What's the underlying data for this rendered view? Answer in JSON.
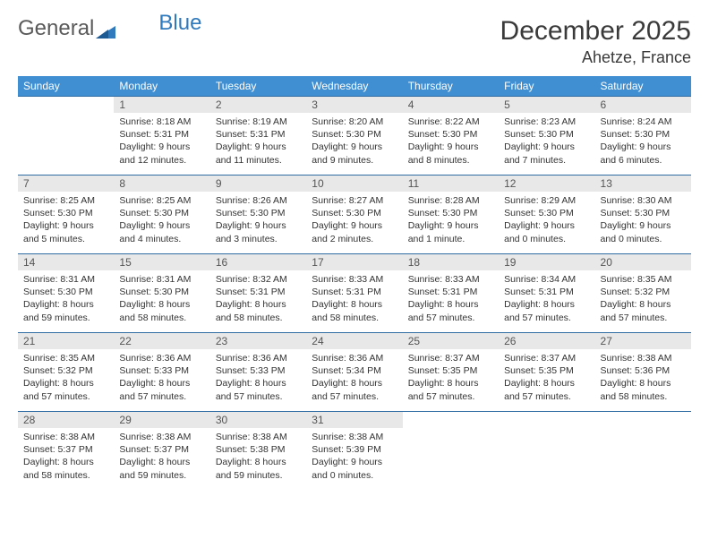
{
  "brand": {
    "part1": "General",
    "part2": "Blue"
  },
  "title": "December 2025",
  "location": "Ahetze, France",
  "colors": {
    "header_bg": "#3f8fd2",
    "header_text": "#ffffff",
    "daynum_bg": "#e8e8e8",
    "daynum_text": "#555555",
    "row_border": "#2e6ca3",
    "body_text": "#333333",
    "brand_gray": "#5a5a5a",
    "brand_blue": "#2f79bd"
  },
  "weekdays": [
    "Sunday",
    "Monday",
    "Tuesday",
    "Wednesday",
    "Thursday",
    "Friday",
    "Saturday"
  ],
  "weeks": [
    [
      {
        "n": "",
        "sr": "",
        "ss": "",
        "dl": ""
      },
      {
        "n": "1",
        "sr": "Sunrise: 8:18 AM",
        "ss": "Sunset: 5:31 PM",
        "dl": "Daylight: 9 hours and 12 minutes."
      },
      {
        "n": "2",
        "sr": "Sunrise: 8:19 AM",
        "ss": "Sunset: 5:31 PM",
        "dl": "Daylight: 9 hours and 11 minutes."
      },
      {
        "n": "3",
        "sr": "Sunrise: 8:20 AM",
        "ss": "Sunset: 5:30 PM",
        "dl": "Daylight: 9 hours and 9 minutes."
      },
      {
        "n": "4",
        "sr": "Sunrise: 8:22 AM",
        "ss": "Sunset: 5:30 PM",
        "dl": "Daylight: 9 hours and 8 minutes."
      },
      {
        "n": "5",
        "sr": "Sunrise: 8:23 AM",
        "ss": "Sunset: 5:30 PM",
        "dl": "Daylight: 9 hours and 7 minutes."
      },
      {
        "n": "6",
        "sr": "Sunrise: 8:24 AM",
        "ss": "Sunset: 5:30 PM",
        "dl": "Daylight: 9 hours and 6 minutes."
      }
    ],
    [
      {
        "n": "7",
        "sr": "Sunrise: 8:25 AM",
        "ss": "Sunset: 5:30 PM",
        "dl": "Daylight: 9 hours and 5 minutes."
      },
      {
        "n": "8",
        "sr": "Sunrise: 8:25 AM",
        "ss": "Sunset: 5:30 PM",
        "dl": "Daylight: 9 hours and 4 minutes."
      },
      {
        "n": "9",
        "sr": "Sunrise: 8:26 AM",
        "ss": "Sunset: 5:30 PM",
        "dl": "Daylight: 9 hours and 3 minutes."
      },
      {
        "n": "10",
        "sr": "Sunrise: 8:27 AM",
        "ss": "Sunset: 5:30 PM",
        "dl": "Daylight: 9 hours and 2 minutes."
      },
      {
        "n": "11",
        "sr": "Sunrise: 8:28 AM",
        "ss": "Sunset: 5:30 PM",
        "dl": "Daylight: 9 hours and 1 minute."
      },
      {
        "n": "12",
        "sr": "Sunrise: 8:29 AM",
        "ss": "Sunset: 5:30 PM",
        "dl": "Daylight: 9 hours and 0 minutes."
      },
      {
        "n": "13",
        "sr": "Sunrise: 8:30 AM",
        "ss": "Sunset: 5:30 PM",
        "dl": "Daylight: 9 hours and 0 minutes."
      }
    ],
    [
      {
        "n": "14",
        "sr": "Sunrise: 8:31 AM",
        "ss": "Sunset: 5:30 PM",
        "dl": "Daylight: 8 hours and 59 minutes."
      },
      {
        "n": "15",
        "sr": "Sunrise: 8:31 AM",
        "ss": "Sunset: 5:30 PM",
        "dl": "Daylight: 8 hours and 58 minutes."
      },
      {
        "n": "16",
        "sr": "Sunrise: 8:32 AM",
        "ss": "Sunset: 5:31 PM",
        "dl": "Daylight: 8 hours and 58 minutes."
      },
      {
        "n": "17",
        "sr": "Sunrise: 8:33 AM",
        "ss": "Sunset: 5:31 PM",
        "dl": "Daylight: 8 hours and 58 minutes."
      },
      {
        "n": "18",
        "sr": "Sunrise: 8:33 AM",
        "ss": "Sunset: 5:31 PM",
        "dl": "Daylight: 8 hours and 57 minutes."
      },
      {
        "n": "19",
        "sr": "Sunrise: 8:34 AM",
        "ss": "Sunset: 5:31 PM",
        "dl": "Daylight: 8 hours and 57 minutes."
      },
      {
        "n": "20",
        "sr": "Sunrise: 8:35 AM",
        "ss": "Sunset: 5:32 PM",
        "dl": "Daylight: 8 hours and 57 minutes."
      }
    ],
    [
      {
        "n": "21",
        "sr": "Sunrise: 8:35 AM",
        "ss": "Sunset: 5:32 PM",
        "dl": "Daylight: 8 hours and 57 minutes."
      },
      {
        "n": "22",
        "sr": "Sunrise: 8:36 AM",
        "ss": "Sunset: 5:33 PM",
        "dl": "Daylight: 8 hours and 57 minutes."
      },
      {
        "n": "23",
        "sr": "Sunrise: 8:36 AM",
        "ss": "Sunset: 5:33 PM",
        "dl": "Daylight: 8 hours and 57 minutes."
      },
      {
        "n": "24",
        "sr": "Sunrise: 8:36 AM",
        "ss": "Sunset: 5:34 PM",
        "dl": "Daylight: 8 hours and 57 minutes."
      },
      {
        "n": "25",
        "sr": "Sunrise: 8:37 AM",
        "ss": "Sunset: 5:35 PM",
        "dl": "Daylight: 8 hours and 57 minutes."
      },
      {
        "n": "26",
        "sr": "Sunrise: 8:37 AM",
        "ss": "Sunset: 5:35 PM",
        "dl": "Daylight: 8 hours and 57 minutes."
      },
      {
        "n": "27",
        "sr": "Sunrise: 8:38 AM",
        "ss": "Sunset: 5:36 PM",
        "dl": "Daylight: 8 hours and 58 minutes."
      }
    ],
    [
      {
        "n": "28",
        "sr": "Sunrise: 8:38 AM",
        "ss": "Sunset: 5:37 PM",
        "dl": "Daylight: 8 hours and 58 minutes."
      },
      {
        "n": "29",
        "sr": "Sunrise: 8:38 AM",
        "ss": "Sunset: 5:37 PM",
        "dl": "Daylight: 8 hours and 59 minutes."
      },
      {
        "n": "30",
        "sr": "Sunrise: 8:38 AM",
        "ss": "Sunset: 5:38 PM",
        "dl": "Daylight: 8 hours and 59 minutes."
      },
      {
        "n": "31",
        "sr": "Sunrise: 8:38 AM",
        "ss": "Sunset: 5:39 PM",
        "dl": "Daylight: 9 hours and 0 minutes."
      },
      {
        "n": "",
        "sr": "",
        "ss": "",
        "dl": ""
      },
      {
        "n": "",
        "sr": "",
        "ss": "",
        "dl": ""
      },
      {
        "n": "",
        "sr": "",
        "ss": "",
        "dl": ""
      }
    ]
  ]
}
